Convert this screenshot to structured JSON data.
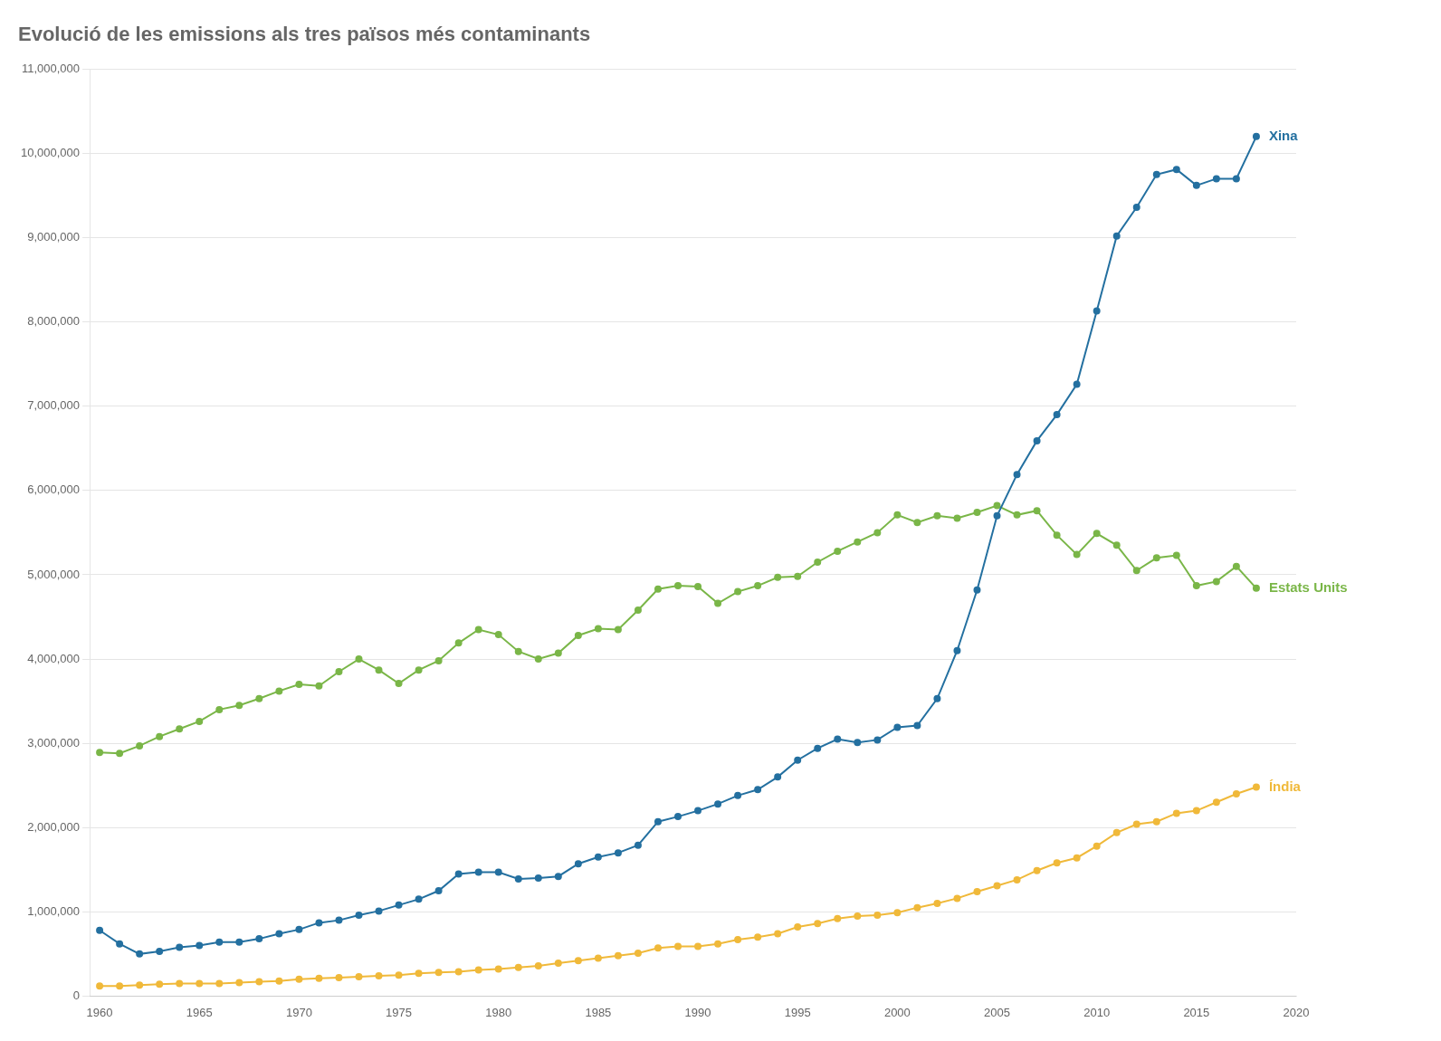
{
  "chart_data": {
    "type": "line",
    "title": "Evolució de les emissions als tres països més contaminants",
    "x": [
      1960,
      1961,
      1962,
      1963,
      1964,
      1965,
      1966,
      1967,
      1968,
      1969,
      1970,
      1971,
      1972,
      1973,
      1974,
      1975,
      1976,
      1977,
      1978,
      1979,
      1980,
      1981,
      1982,
      1983,
      1984,
      1985,
      1986,
      1987,
      1988,
      1989,
      1990,
      1991,
      1992,
      1993,
      1994,
      1995,
      1996,
      1997,
      1998,
      1999,
      2000,
      2001,
      2002,
      2003,
      2004,
      2005,
      2006,
      2007,
      2008,
      2009,
      2010,
      2011,
      2012,
      2013,
      2014,
      2015,
      2016,
      2017,
      2018
    ],
    "series": [
      {
        "name": "Xina",
        "color": "#2470a0",
        "values": [
          780000,
          620000,
          500000,
          530000,
          580000,
          600000,
          640000,
          640000,
          680000,
          740000,
          790000,
          870000,
          900000,
          960000,
          1010000,
          1080000,
          1150000,
          1250000,
          1450000,
          1470000,
          1470000,
          1390000,
          1400000,
          1420000,
          1570000,
          1650000,
          1700000,
          1790000,
          2070000,
          2130000,
          2200000,
          2280000,
          2380000,
          2450000,
          2600000,
          2800000,
          2940000,
          3050000,
          3010000,
          3040000,
          3190000,
          3210000,
          3530000,
          4100000,
          4820000,
          5700000,
          6190000,
          6590000,
          6900000,
          7260000,
          8130000,
          9020000,
          9360000,
          9750000,
          9810000,
          9620000,
          9700000,
          9700000,
          10200000
        ]
      },
      {
        "name": "Estats Units",
        "color": "#7ab648",
        "values": [
          2890000,
          2880000,
          2970000,
          3080000,
          3170000,
          3260000,
          3400000,
          3450000,
          3530000,
          3620000,
          3700000,
          3680000,
          3850000,
          4000000,
          3870000,
          3710000,
          3870000,
          3980000,
          4190000,
          4350000,
          4290000,
          4090000,
          4000000,
          4070000,
          4280000,
          4360000,
          4350000,
          4580000,
          4830000,
          4870000,
          4860000,
          4660000,
          4800000,
          4870000,
          4970000,
          4980000,
          5150000,
          5280000,
          5390000,
          5500000,
          5710000,
          5620000,
          5700000,
          5670000,
          5740000,
          5820000,
          5710000,
          5760000,
          5470000,
          5240000,
          5490000,
          5350000,
          5050000,
          5200000,
          5230000,
          4870000,
          4920000,
          5100000,
          4840000
        ]
      },
      {
        "name": "Índia",
        "color": "#f0b93a",
        "values": [
          120000,
          120000,
          130000,
          140000,
          150000,
          150000,
          150000,
          160000,
          170000,
          180000,
          200000,
          210000,
          220000,
          230000,
          240000,
          250000,
          270000,
          280000,
          290000,
          310000,
          320000,
          340000,
          360000,
          390000,
          420000,
          450000,
          480000,
          510000,
          570000,
          590000,
          590000,
          620000,
          670000,
          700000,
          740000,
          820000,
          860000,
          920000,
          950000,
          960000,
          990000,
          1050000,
          1100000,
          1160000,
          1240000,
          1310000,
          1380000,
          1490000,
          1580000,
          1640000,
          1780000,
          1940000,
          2040000,
          2070000,
          2170000,
          2200000,
          2300000,
          2400000,
          2480000
        ]
      }
    ],
    "xlim": [
      1959.5,
      2020
    ],
    "xticks": [
      1960,
      1965,
      1970,
      1975,
      1980,
      1985,
      1990,
      1995,
      2000,
      2005,
      2010,
      2015,
      2020
    ],
    "ylim": [
      0,
      11000000
    ],
    "yticks": [
      0,
      {
        "value": 1000000,
        "label": "1,000,000"
      },
      {
        "value": 2000000,
        "label": "2,000,000"
      },
      {
        "value": 3000000,
        "label": "3,000,000"
      },
      {
        "value": 4000000,
        "label": "4,000,000"
      },
      {
        "value": 5000000,
        "label": "5,000,000"
      },
      {
        "value": 6000000,
        "label": "6,000,000"
      },
      {
        "value": 7000000,
        "label": "7,000,000"
      },
      {
        "value": 8000000,
        "label": "8,000,000"
      },
      {
        "value": 9000000,
        "label": "9,000,000"
      },
      {
        "value": 10000000,
        "label": "10,000,000"
      },
      {
        "value": 11000000,
        "label": "11,000,000"
      }
    ],
    "grid": "y",
    "marker": "circle"
  }
}
